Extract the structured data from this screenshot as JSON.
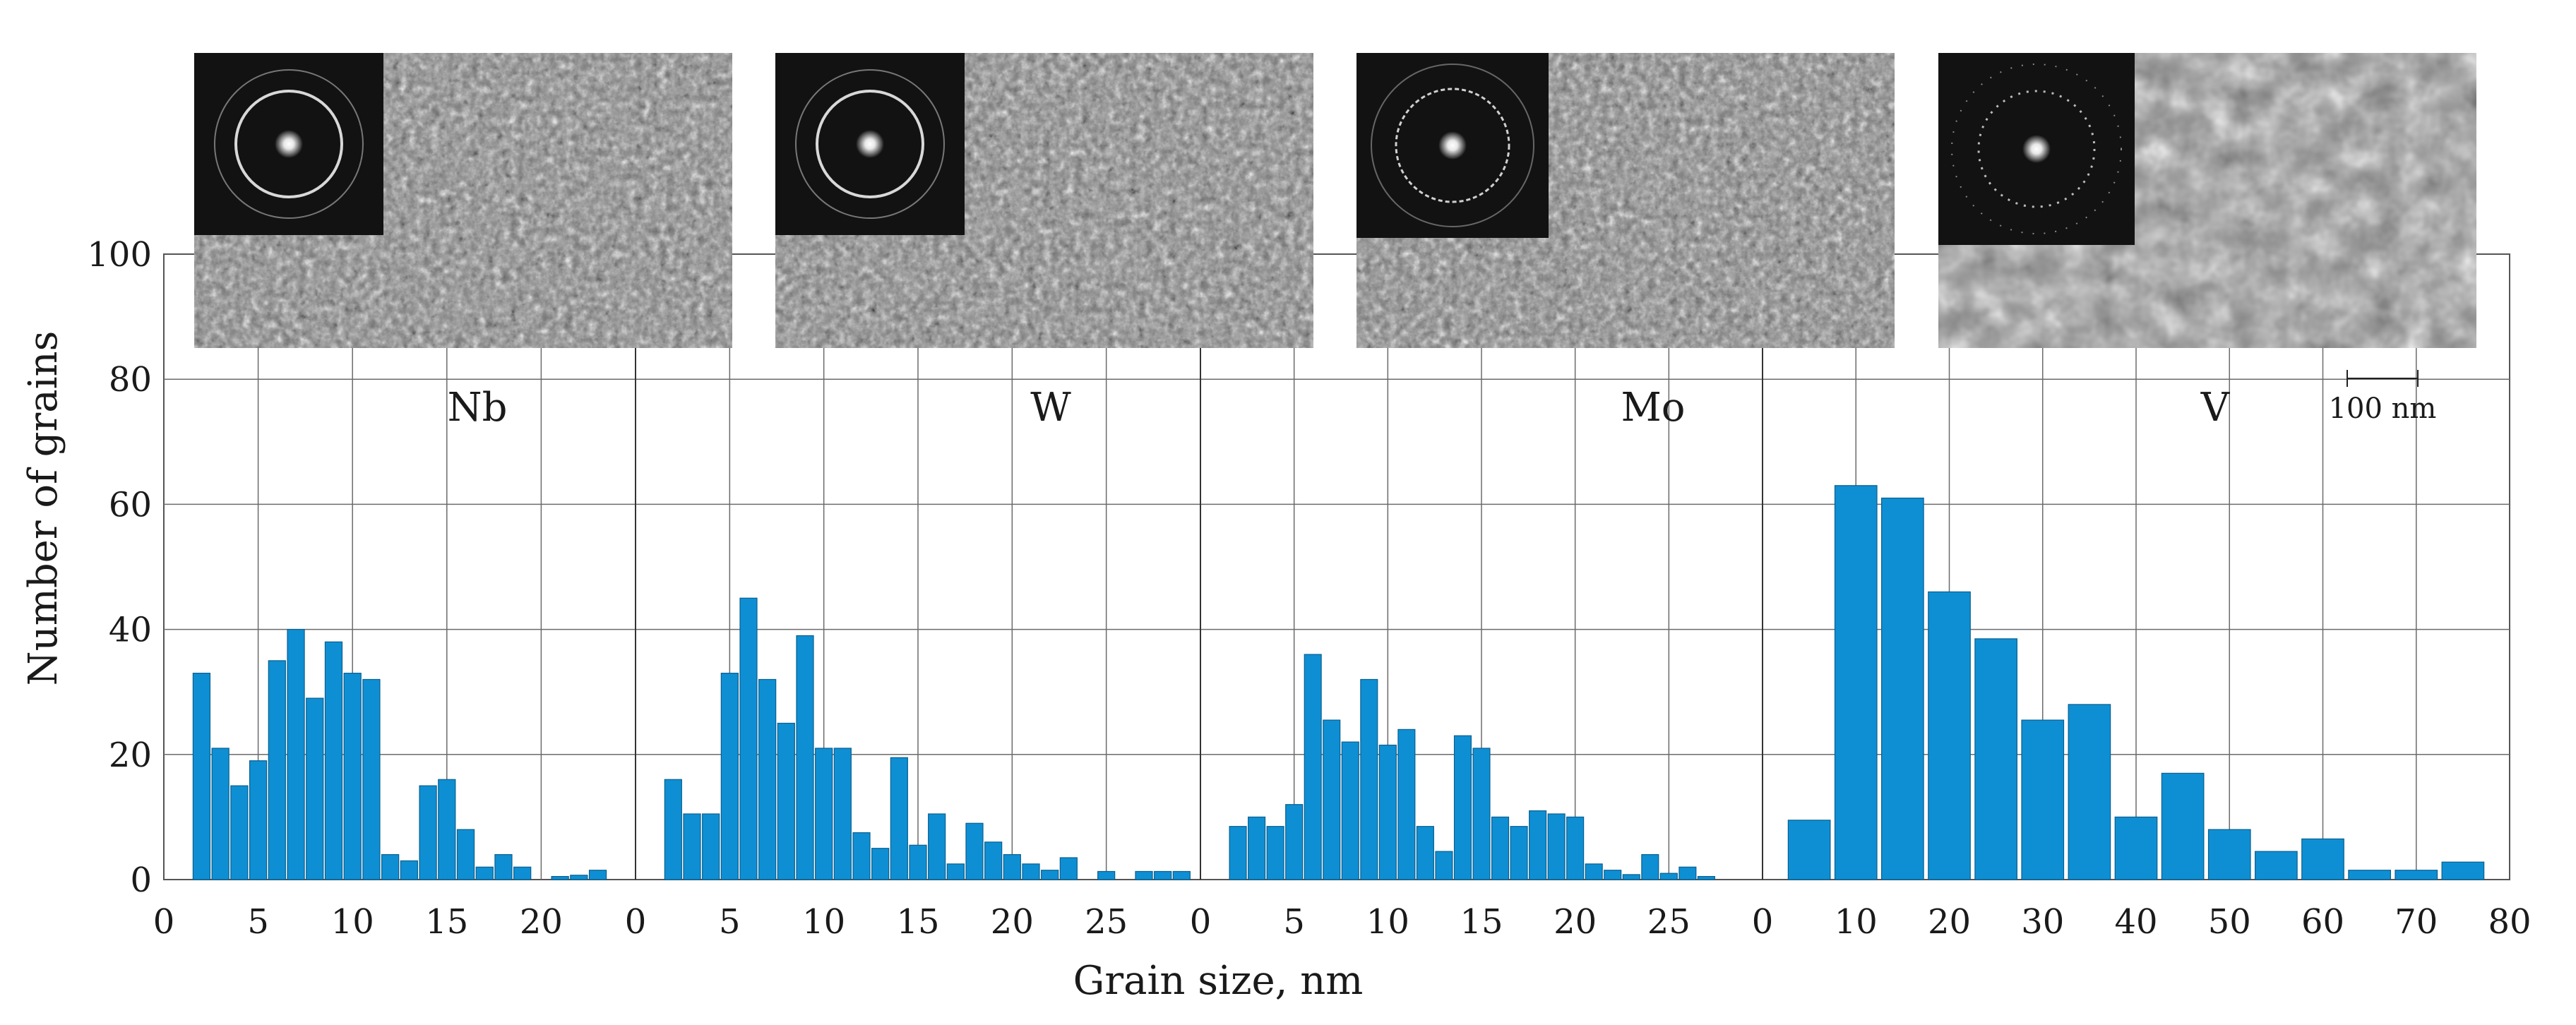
{
  "chart_data": {
    "type": "bar",
    "ylabel": "Number of grains",
    "xlabel": "Grain size, nm",
    "ylim": [
      0,
      100
    ],
    "yticks": [
      "0",
      "20",
      "40",
      "60",
      "80",
      "100"
    ],
    "grid": true,
    "scale_bar_label": "100 nm",
    "bar_color": "#0e8fd3",
    "panels": [
      {
        "name": "Nb",
        "xlim": [
          0,
          25
        ],
        "xticks": [
          {
            "v": 0,
            "label": "0"
          },
          {
            "v": 5,
            "label": "5"
          },
          {
            "v": 10,
            "label": "10"
          },
          {
            "v": 15,
            "label": "15"
          },
          {
            "v": 20,
            "label": "20"
          }
        ],
        "bin_width": 1,
        "x": [
          2,
          3,
          4,
          5,
          6,
          7,
          8,
          9,
          10,
          11,
          12,
          13,
          14,
          15,
          16,
          17,
          18,
          19,
          20,
          21,
          22,
          23
        ],
        "values": [
          33,
          21,
          15,
          19,
          35,
          40,
          29,
          38,
          33,
          32,
          4,
          3,
          15,
          16,
          8,
          2,
          4,
          2,
          0,
          0.5,
          0.7,
          1.5
        ]
      },
      {
        "name": "W",
        "xlim": [
          0,
          30
        ],
        "xticks": [
          {
            "v": 0,
            "label": "0"
          },
          {
            "v": 5,
            "label": "5"
          },
          {
            "v": 10,
            "label": "10"
          },
          {
            "v": 15,
            "label": "15"
          },
          {
            "v": 20,
            "label": "20"
          },
          {
            "v": 25,
            "label": "25"
          }
        ],
        "bin_width": 1,
        "x": [
          2,
          3,
          4,
          5,
          6,
          7,
          8,
          9,
          10,
          11,
          12,
          13,
          14,
          15,
          16,
          17,
          18,
          19,
          20,
          21,
          22,
          23,
          24,
          25,
          26,
          27,
          28,
          29
        ],
        "values": [
          16,
          10.5,
          10.5,
          33,
          45,
          32,
          25,
          39,
          21,
          21,
          7.5,
          5,
          19.5,
          5.5,
          10.5,
          2.5,
          9,
          6,
          4,
          2.5,
          1.5,
          3.5,
          0,
          1.3,
          0,
          1.3,
          1.3,
          1.3
        ]
      },
      {
        "name": "Mo",
        "xlim": [
          0,
          30
        ],
        "xticks": [
          {
            "v": 0,
            "label": "0"
          },
          {
            "v": 5,
            "label": "5"
          },
          {
            "v": 10,
            "label": "10"
          },
          {
            "v": 15,
            "label": "15"
          },
          {
            "v": 20,
            "label": "20"
          },
          {
            "v": 25,
            "label": "25"
          }
        ],
        "bin_width": 1,
        "x": [
          2,
          3,
          4,
          5,
          6,
          7,
          8,
          9,
          10,
          11,
          12,
          13,
          14,
          15,
          16,
          17,
          18,
          19,
          20,
          21,
          22,
          23,
          24,
          25,
          26,
          27
        ],
        "values": [
          8.5,
          10,
          8.5,
          12,
          36,
          25.5,
          22,
          32,
          21.5,
          24,
          8.5,
          4.5,
          23,
          21,
          10,
          8.5,
          11,
          10.5,
          10,
          2.5,
          1.5,
          0.8,
          4,
          1,
          2,
          0.5
        ]
      },
      {
        "name": "V",
        "xlim": [
          0,
          80
        ],
        "xticks": [
          {
            "v": 0,
            "label": "0"
          },
          {
            "v": 10,
            "label": "10"
          },
          {
            "v": 20,
            "label": "20"
          },
          {
            "v": 30,
            "label": "30"
          },
          {
            "v": 40,
            "label": "40"
          },
          {
            "v": 50,
            "label": "50"
          },
          {
            "v": 60,
            "label": "60"
          },
          {
            "v": 70,
            "label": "70"
          },
          {
            "v": 80,
            "label": "80"
          }
        ],
        "bin_width": 5,
        "x": [
          5,
          10,
          15,
          20,
          25,
          30,
          35,
          40,
          45,
          50,
          55,
          60,
          65,
          70,
          75
        ],
        "values": [
          9.5,
          63,
          61,
          46,
          38.5,
          25.5,
          28,
          10,
          17,
          8,
          4.5,
          6.5,
          1.5,
          1.5,
          2.8
        ]
      }
    ]
  }
}
